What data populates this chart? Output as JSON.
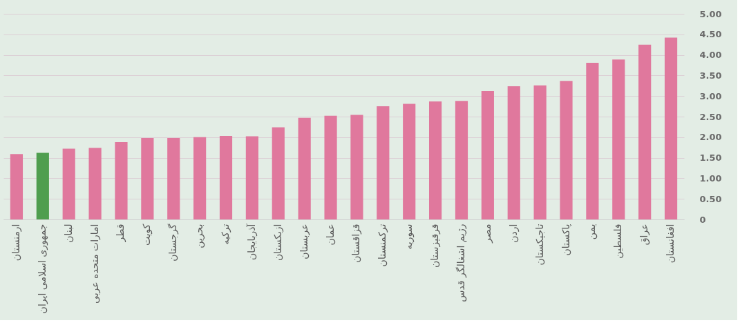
{
  "chart_data": {
    "type": "bar",
    "categories": [
      "ارمنستان",
      "جمهوری اسلامی ایران",
      "لبنان",
      "امارات متحده عربی",
      "قطر",
      "کویت",
      "گرجستان",
      "بحرین",
      "ترکیه",
      "آذربایجان",
      "ازبکستان",
      "عربستان",
      "عمان",
      "قزاقستان",
      "ترکمنستان",
      "سوریه",
      "قرقیزستان",
      "رژیم اشغالگر قدس",
      "مصر",
      "اردن",
      "تاجیکستان",
      "پاکستان",
      "یمن",
      "فلسطین",
      "عراق",
      "افغانستان"
    ],
    "values": [
      1.59,
      1.62,
      1.72,
      1.74,
      1.88,
      1.98,
      1.98,
      2.0,
      2.03,
      2.02,
      2.24,
      2.47,
      2.52,
      2.54,
      2.75,
      2.81,
      2.87,
      2.88,
      3.12,
      3.24,
      3.26,
      3.37,
      3.81,
      3.89,
      4.25,
      4.42
    ],
    "colors": [
      "#e0789d",
      "#4f9e4f",
      "#e0789d",
      "#e0789d",
      "#e0789d",
      "#e0789d",
      "#e0789d",
      "#e0789d",
      "#e0789d",
      "#e0789d",
      "#e0789d",
      "#e0789d",
      "#e0789d",
      "#e0789d",
      "#e0789d",
      "#e0789d",
      "#e0789d",
      "#e0789d",
      "#e0789d",
      "#e0789d",
      "#e0789d",
      "#e0789d",
      "#e0789d",
      "#e0789d",
      "#e0789d",
      "#e0789d"
    ],
    "ylim": [
      0,
      5
    ],
    "yticks": [
      0,
      {
        "value": 0.5,
        "label": "0.50"
      },
      {
        "value": 1,
        "label": "1.00"
      },
      {
        "value": 1.5,
        "label": "1.50"
      },
      {
        "value": 2,
        "label": "2.00"
      },
      {
        "value": 2.5,
        "label": "2.50"
      },
      {
        "value": 3,
        "label": "3.00"
      },
      {
        "value": 3.5,
        "label": "3.50"
      },
      {
        "value": 4,
        "label": "4.00"
      },
      {
        "value": 4.5,
        "label": "4.50"
      },
      {
        "value": 5,
        "label": "5.00"
      }
    ],
    "grid": "y"
  }
}
